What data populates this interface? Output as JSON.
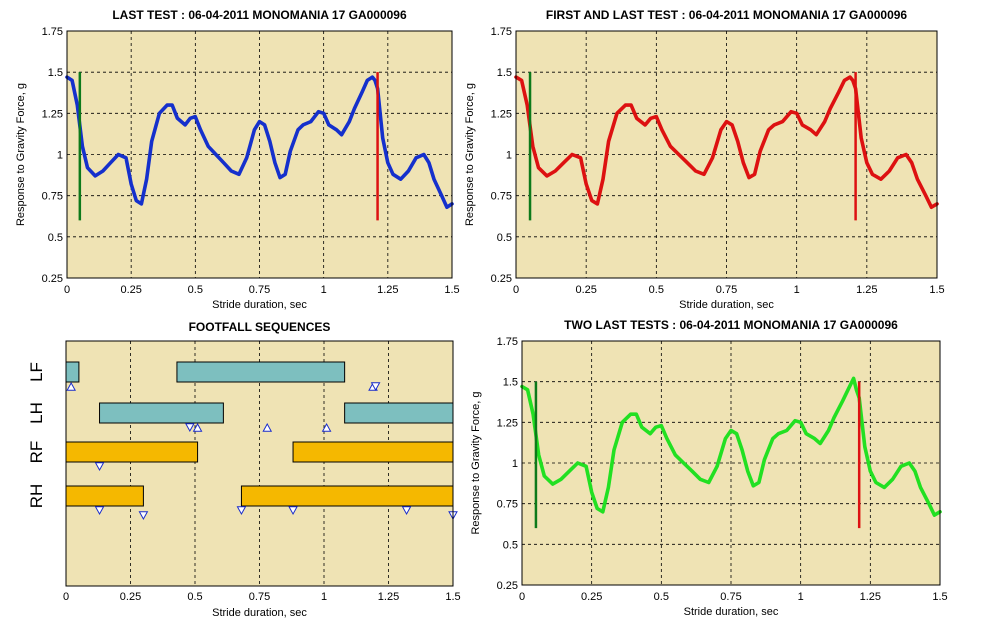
{
  "chart_data": [
    {
      "type": "line",
      "title": "LAST TEST : 06-04-2011 MONOMANIA 17 GA000096",
      "xlabel": "Stride duration, sec",
      "ylabel": "Response to Gravity Force, g",
      "xlim": [
        0,
        1.5
      ],
      "ylim": [
        0.25,
        1.75
      ],
      "xticks": [
        "0",
        "0.25",
        "0.5",
        "0.75",
        "1",
        "1.25",
        "1.5"
      ],
      "yticks": [
        "0.25",
        "0.5",
        "0.75",
        "1",
        "1.25",
        "1.5",
        "1.75"
      ],
      "grid": true,
      "background_color": "#efe3b4",
      "series": [
        {
          "color": "#1530cc",
          "x": [
            0,
            0.02,
            0.04,
            0.06,
            0.08,
            0.11,
            0.14,
            0.17,
            0.2,
            0.23,
            0.25,
            0.27,
            0.29,
            0.31,
            0.33,
            0.36,
            0.39,
            0.41,
            0.43,
            0.46,
            0.48,
            0.5,
            0.52,
            0.55,
            0.58,
            0.61,
            0.64,
            0.67,
            0.7,
            0.73,
            0.75,
            0.77,
            0.79,
            0.81,
            0.83,
            0.85,
            0.87,
            0.9,
            0.92,
            0.95,
            0.98,
            1.0,
            1.02,
            1.05,
            1.07,
            1.1,
            1.12,
            1.15,
            1.17,
            1.19,
            1.2,
            1.21,
            1.23,
            1.25,
            1.27,
            1.3,
            1.33,
            1.36,
            1.39,
            1.41,
            1.43,
            1.46,
            1.48,
            1.5
          ],
          "y": [
            1.47,
            1.45,
            1.3,
            1.05,
            0.92,
            0.87,
            0.9,
            0.95,
            1.0,
            0.98,
            0.82,
            0.72,
            0.7,
            0.85,
            1.08,
            1.25,
            1.3,
            1.3,
            1.22,
            1.18,
            1.22,
            1.23,
            1.15,
            1.05,
            1.0,
            0.95,
            0.9,
            0.88,
            0.98,
            1.15,
            1.2,
            1.18,
            1.08,
            0.95,
            0.86,
            0.88,
            1.02,
            1.15,
            1.18,
            1.2,
            1.26,
            1.25,
            1.18,
            1.15,
            1.12,
            1.2,
            1.28,
            1.38,
            1.45,
            1.47,
            1.45,
            1.4,
            1.1,
            0.95,
            0.88,
            0.85,
            0.9,
            0.98,
            1.0,
            0.95,
            0.85,
            0.75,
            0.68,
            0.7
          ]
        }
      ],
      "markers": [
        {
          "x": 0.05,
          "y0": 0.6,
          "y1": 1.5,
          "color": "#0d7a1a"
        },
        {
          "x": 1.21,
          "y0": 0.6,
          "y1": 1.5,
          "color": "#dd1111"
        }
      ]
    },
    {
      "type": "line",
      "title": "FIRST AND LAST TEST : 06-04-2011 MONOMANIA 17 GA000096",
      "xlabel": "Stride duration, sec",
      "ylabel": "Response to Gravity Force, g",
      "xlim": [
        0,
        1.5
      ],
      "ylim": [
        0.25,
        1.75
      ],
      "xticks": [
        "0",
        "0.25",
        "0.5",
        "0.75",
        "1",
        "1.25",
        "1.5"
      ],
      "yticks": [
        "0.25",
        "0.5",
        "0.75",
        "1",
        "1.25",
        "1.5",
        "1.75"
      ],
      "grid": true,
      "background_color": "#efe3b4",
      "series": [
        {
          "color": "#dd1111",
          "x": [
            0,
            0.02,
            0.04,
            0.06,
            0.08,
            0.11,
            0.14,
            0.17,
            0.2,
            0.23,
            0.25,
            0.27,
            0.29,
            0.31,
            0.33,
            0.36,
            0.39,
            0.41,
            0.43,
            0.46,
            0.48,
            0.5,
            0.52,
            0.55,
            0.58,
            0.61,
            0.64,
            0.67,
            0.7,
            0.73,
            0.75,
            0.77,
            0.79,
            0.81,
            0.83,
            0.85,
            0.87,
            0.9,
            0.92,
            0.95,
            0.98,
            1.0,
            1.02,
            1.05,
            1.07,
            1.1,
            1.12,
            1.15,
            1.17,
            1.19,
            1.2,
            1.21,
            1.23,
            1.25,
            1.27,
            1.3,
            1.33,
            1.36,
            1.39,
            1.41,
            1.43,
            1.46,
            1.48,
            1.5
          ],
          "y": [
            1.47,
            1.45,
            1.3,
            1.05,
            0.92,
            0.87,
            0.9,
            0.95,
            1.0,
            0.98,
            0.82,
            0.72,
            0.7,
            0.85,
            1.08,
            1.25,
            1.3,
            1.3,
            1.22,
            1.18,
            1.22,
            1.23,
            1.15,
            1.05,
            1.0,
            0.95,
            0.9,
            0.88,
            0.98,
            1.15,
            1.2,
            1.18,
            1.08,
            0.95,
            0.86,
            0.88,
            1.02,
            1.15,
            1.18,
            1.2,
            1.26,
            1.25,
            1.18,
            1.15,
            1.12,
            1.2,
            1.28,
            1.38,
            1.45,
            1.47,
            1.45,
            1.4,
            1.1,
            0.95,
            0.88,
            0.85,
            0.9,
            0.98,
            1.0,
            0.95,
            0.85,
            0.75,
            0.68,
            0.7
          ]
        }
      ],
      "markers": [
        {
          "x": 0.05,
          "y0": 0.6,
          "y1": 1.5,
          "color": "#0d7a1a"
        },
        {
          "x": 1.21,
          "y0": 0.6,
          "y1": 1.5,
          "color": "#dd1111"
        }
      ]
    },
    {
      "type": "gantt",
      "title": "FOOTFALL SEQUENCES",
      "xlabel": "Stride duration, sec",
      "xlim": [
        0,
        1.5
      ],
      "xticks": [
        "0",
        "0.25",
        "0.5",
        "0.75",
        "1",
        "1.25",
        "1.5"
      ],
      "grid": true,
      "background_color": "#efe3b4",
      "rows": [
        {
          "label": "LF",
          "color": "#7dbfbf",
          "bars": [
            [
              0,
              0.05
            ],
            [
              0.43,
              1.08
            ]
          ]
        },
        {
          "label": "LH",
          "color": "#7dbfbf",
          "bars": [
            [
              0.13,
              0.61
            ],
            [
              1.08,
              1.5
            ]
          ]
        },
        {
          "label": "RF",
          "color": "#f5b800",
          "bars": [
            [
              0,
              0.51
            ],
            [
              0.88,
              1.5
            ]
          ]
        },
        {
          "label": "RH",
          "color": "#f5b800",
          "bars": [
            [
              0,
              0.3
            ],
            [
              0.68,
              1.5
            ]
          ]
        }
      ],
      "events": [
        {
          "x": 0.02,
          "row": 0,
          "dir": "up"
        },
        {
          "x": 1.19,
          "row": 0,
          "dir": "up"
        },
        {
          "x": 1.2,
          "row": 0,
          "dir": "down"
        },
        {
          "x": 0.51,
          "row": 1,
          "dir": "up"
        },
        {
          "x": 0.48,
          "row": 1,
          "dir": "down"
        },
        {
          "x": 0.78,
          "row": 1,
          "dir": "up"
        },
        {
          "x": 1.01,
          "row": 1,
          "dir": "up"
        },
        {
          "x": 0.13,
          "row": 2,
          "dir": "down"
        },
        {
          "x": 0.68,
          "row": 3,
          "dir": "down"
        },
        {
          "x": 0.13,
          "row": 3,
          "dir": "down"
        },
        {
          "x": 0.88,
          "row": 3,
          "dir": "down"
        },
        {
          "x": 1.32,
          "row": 3,
          "dir": "down"
        },
        {
          "x": 0.3,
          "row": 3,
          "dir": "down",
          "below": true
        },
        {
          "x": 1.5,
          "row": 3,
          "dir": "down",
          "below": true
        }
      ]
    },
    {
      "type": "line",
      "title": "TWO LAST TESTS : 06-04-2011 MONOMANIA 17 GA000096",
      "xlabel": "Stride duration, sec",
      "ylabel": "Response to Gravity Force, g",
      "xlim": [
        0,
        1.5
      ],
      "ylim": [
        0.25,
        1.75
      ],
      "xticks": [
        "0",
        "0.25",
        "0.5",
        "0.75",
        "1",
        "1.25",
        "1.5"
      ],
      "yticks": [
        "0.25",
        "0.5",
        "0.75",
        "1",
        "1.25",
        "1.5",
        "1.75"
      ],
      "grid": true,
      "background_color": "#efe3b4",
      "series": [
        {
          "color": "#22e022",
          "x": [
            0,
            0.02,
            0.04,
            0.06,
            0.08,
            0.11,
            0.14,
            0.17,
            0.2,
            0.23,
            0.25,
            0.27,
            0.29,
            0.31,
            0.33,
            0.36,
            0.39,
            0.41,
            0.43,
            0.46,
            0.48,
            0.5,
            0.52,
            0.55,
            0.58,
            0.61,
            0.64,
            0.67,
            0.7,
            0.73,
            0.75,
            0.77,
            0.79,
            0.81,
            0.83,
            0.85,
            0.87,
            0.9,
            0.92,
            0.95,
            0.98,
            1.0,
            1.02,
            1.05,
            1.07,
            1.1,
            1.12,
            1.15,
            1.17,
            1.19,
            1.2,
            1.21,
            1.23,
            1.25,
            1.27,
            1.3,
            1.33,
            1.36,
            1.39,
            1.41,
            1.43,
            1.46,
            1.48,
            1.5
          ],
          "y": [
            1.47,
            1.45,
            1.3,
            1.05,
            0.92,
            0.87,
            0.9,
            0.95,
            1.0,
            0.98,
            0.82,
            0.72,
            0.7,
            0.85,
            1.08,
            1.25,
            1.3,
            1.3,
            1.22,
            1.18,
            1.22,
            1.23,
            1.15,
            1.05,
            1.0,
            0.95,
            0.9,
            0.88,
            0.98,
            1.15,
            1.2,
            1.18,
            1.08,
            0.95,
            0.86,
            0.88,
            1.02,
            1.15,
            1.18,
            1.2,
            1.26,
            1.25,
            1.18,
            1.15,
            1.12,
            1.2,
            1.28,
            1.38,
            1.45,
            1.52,
            1.45,
            1.4,
            1.1,
            0.95,
            0.88,
            0.85,
            0.9,
            0.98,
            1.0,
            0.95,
            0.85,
            0.75,
            0.68,
            0.7
          ]
        }
      ],
      "markers": [
        {
          "x": 0.05,
          "y0": 0.6,
          "y1": 1.5,
          "color": "#0d7a1a"
        },
        {
          "x": 1.21,
          "y0": 0.6,
          "y1": 1.5,
          "color": "#dd1111"
        }
      ]
    }
  ]
}
